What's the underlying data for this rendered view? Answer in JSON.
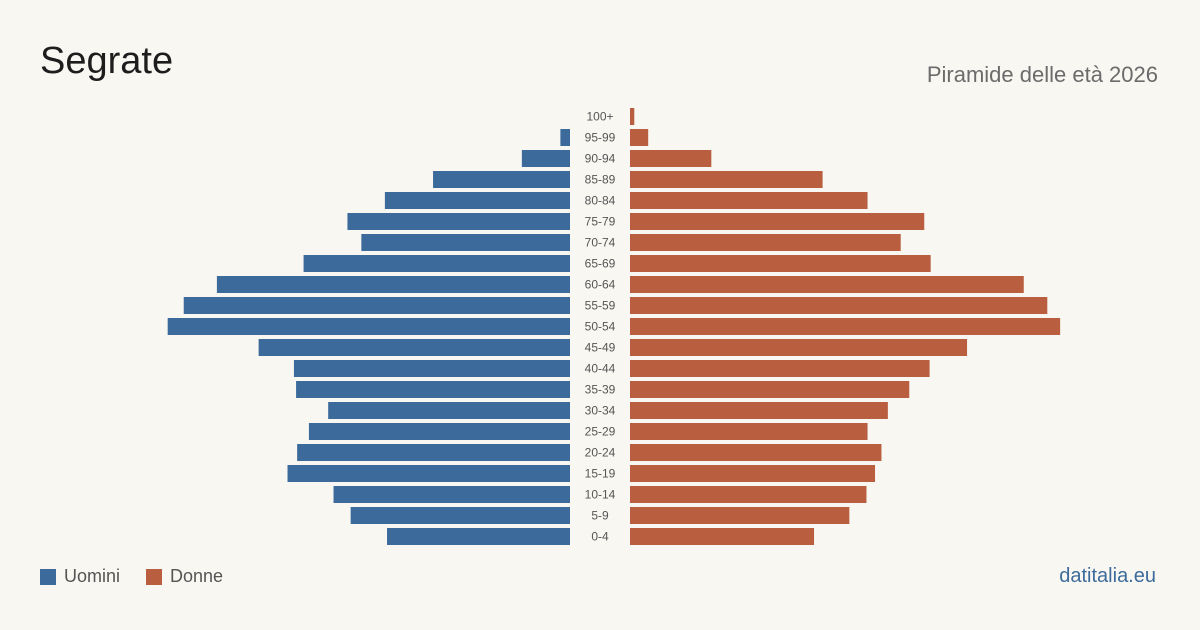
{
  "header": {
    "title": "Segrate",
    "subtitle": "Piramide delle età 2026"
  },
  "legend": {
    "men_label": "Uomini",
    "women_label": "Donne"
  },
  "source": "datitalia.eu",
  "colors": {
    "men": "#3c6a9b",
    "women": "#b95f3f",
    "background": "#f9f7f2"
  },
  "chart_data": {
    "type": "bar",
    "orientation": "horizontal-pyramid",
    "categories": [
      "100+",
      "95-99",
      "90-94",
      "85-89",
      "80-84",
      "75-79",
      "70-74",
      "65-69",
      "60-64",
      "55-59",
      "50-54",
      "45-49",
      "40-44",
      "35-39",
      "30-34",
      "25-29",
      "20-24",
      "15-19",
      "10-14",
      "5-9",
      "0-4"
    ],
    "series": [
      {
        "name": "Uomini",
        "values": [
          0,
          9,
          45,
          128,
          173,
          208,
          195,
          249,
          330,
          361,
          376,
          291,
          258,
          256,
          226,
          244,
          255,
          264,
          221,
          205,
          171
        ]
      },
      {
        "name": "Donne",
        "values": [
          4,
          17,
          76,
          180,
          222,
          275,
          253,
          281,
          368,
          390,
          402,
          315,
          280,
          261,
          241,
          222,
          235,
          229,
          221,
          205,
          172
        ]
      }
    ],
    "xlabel": "",
    "ylabel": "",
    "grid": false,
    "legend_position": "bottom-left"
  }
}
